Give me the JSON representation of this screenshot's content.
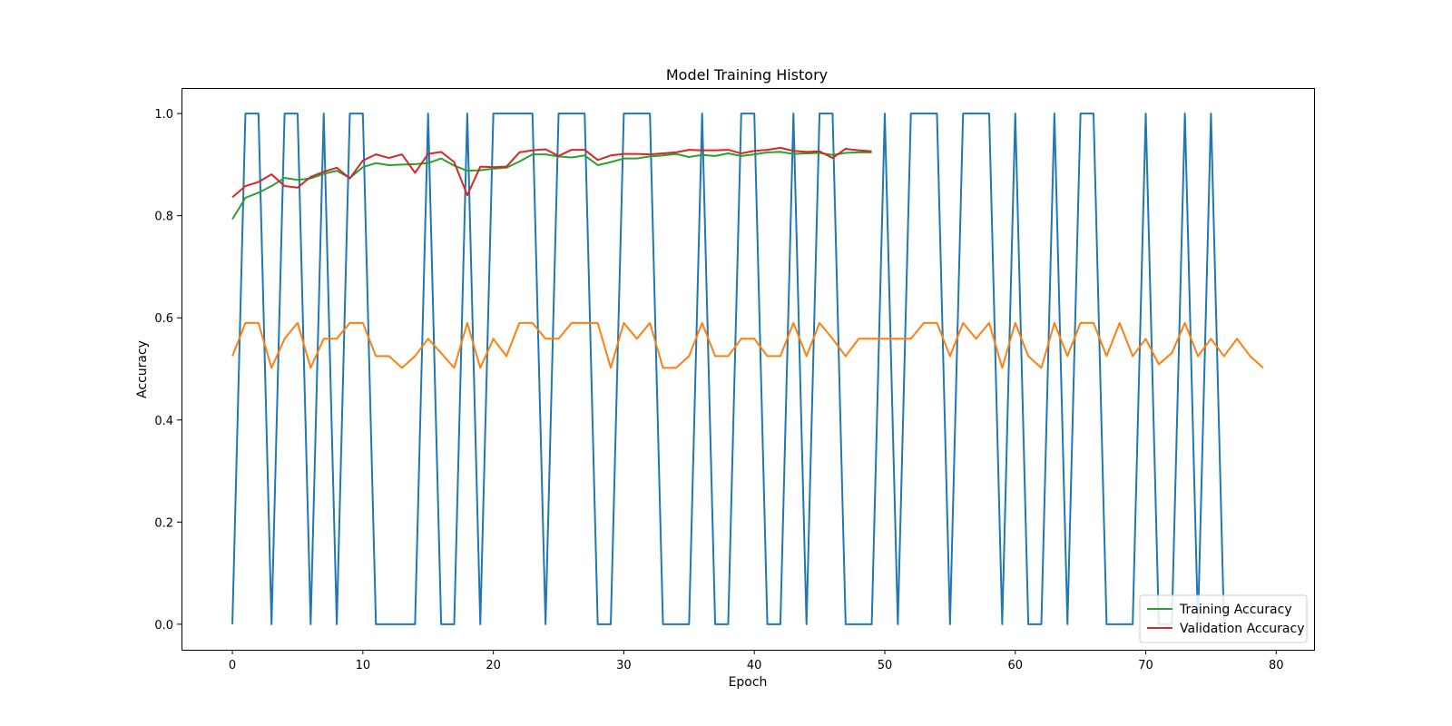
{
  "chart_data": {
    "type": "line",
    "title": "Model Training History",
    "xlabel": "Epoch",
    "ylabel": "Accuracy",
    "xlim": [
      -3.9,
      82.9
    ],
    "ylim": [
      -0.05,
      1.05
    ],
    "x_ticks": [
      0,
      10,
      20,
      30,
      40,
      50,
      60,
      70,
      80
    ],
    "y_ticks": [
      0.0,
      0.2,
      0.4,
      0.6,
      0.8,
      1.0
    ],
    "x_tick_labels": [
      "0",
      "10",
      "20",
      "30",
      "40",
      "50",
      "60",
      "70",
      "80"
    ],
    "y_tick_labels": [
      "0.0",
      "0.2",
      "0.4",
      "0.6",
      "0.8",
      "1.0"
    ],
    "grid": false,
    "legend_position": "bottom-right",
    "series": [
      {
        "color": "#1f77b4",
        "in_legend": false,
        "values": [
          0,
          1,
          1,
          0,
          1,
          1,
          0,
          1,
          0,
          1,
          1,
          0,
          0,
          0,
          0,
          1,
          0,
          0,
          1,
          0,
          1,
          1,
          1,
          1,
          0,
          1,
          1,
          1,
          0,
          0,
          1,
          1,
          1,
          0,
          0,
          0,
          1,
          0,
          0,
          1,
          1,
          0,
          0,
          1,
          0,
          1,
          1,
          0,
          0,
          0,
          1,
          0,
          1,
          1,
          1,
          0,
          1,
          1,
          1,
          0,
          1,
          0,
          0,
          1,
          0,
          1,
          1,
          0,
          0,
          0,
          1,
          0,
          0,
          1,
          0,
          1,
          0
        ]
      },
      {
        "color": "#ff7f0e",
        "in_legend": false,
        "values": [
          0.525,
          0.59,
          0.59,
          0.502,
          0.559,
          0.59,
          0.502,
          0.559,
          0.559,
          0.59,
          0.59,
          0.525,
          0.525,
          0.502,
          0.525,
          0.559,
          0.531,
          0.502,
          0.59,
          0.502,
          0.559,
          0.525,
          0.59,
          0.59,
          0.559,
          0.559,
          0.59,
          0.59,
          0.59,
          0.502,
          0.59,
          0.559,
          0.59,
          0.502,
          0.502,
          0.525,
          0.59,
          0.525,
          0.525,
          0.559,
          0.559,
          0.525,
          0.525,
          0.59,
          0.525,
          0.59,
          0.559,
          0.525,
          0.559,
          0.559,
          0.559,
          0.559,
          0.559,
          0.59,
          0.59,
          0.525,
          0.59,
          0.559,
          0.59,
          0.502,
          0.59,
          0.525,
          0.502,
          0.59,
          0.525,
          0.59,
          0.59,
          0.525,
          0.59,
          0.525,
          0.559,
          0.509,
          0.531,
          0.59,
          0.525,
          0.559,
          0.525,
          0.559,
          0.525,
          0.502
        ]
      },
      {
        "name": "Training Accuracy",
        "color": "#2ca02c",
        "in_legend": true,
        "values": [
          0.793,
          0.835,
          0.845,
          0.858,
          0.874,
          0.87,
          0.873,
          0.882,
          0.888,
          0.874,
          0.895,
          0.903,
          0.899,
          0.9,
          0.901,
          0.903,
          0.912,
          0.898,
          0.888,
          0.889,
          0.892,
          0.894,
          0.906,
          0.92,
          0.92,
          0.916,
          0.914,
          0.918,
          0.899,
          0.905,
          0.912,
          0.912,
          0.916,
          0.918,
          0.921,
          0.915,
          0.919,
          0.917,
          0.922,
          0.917,
          0.92,
          0.924,
          0.925,
          0.921,
          0.922,
          0.923,
          0.919,
          0.923,
          0.924,
          0.924
        ]
      },
      {
        "name": "Validation Accuracy",
        "color": "#d62728",
        "in_legend": true,
        "values": [
          0.836,
          0.858,
          0.866,
          0.881,
          0.858,
          0.855,
          0.876,
          0.886,
          0.894,
          0.873,
          0.908,
          0.92,
          0.913,
          0.92,
          0.884,
          0.921,
          0.925,
          0.905,
          0.84,
          0.896,
          0.895,
          0.896,
          0.924,
          0.928,
          0.93,
          0.917,
          0.929,
          0.929,
          0.909,
          0.918,
          0.921,
          0.921,
          0.92,
          0.922,
          0.924,
          0.929,
          0.928,
          0.928,
          0.929,
          0.922,
          0.927,
          0.929,
          0.933,
          0.927,
          0.925,
          0.926,
          0.913,
          0.931,
          0.928,
          0.926
        ]
      }
    ]
  }
}
